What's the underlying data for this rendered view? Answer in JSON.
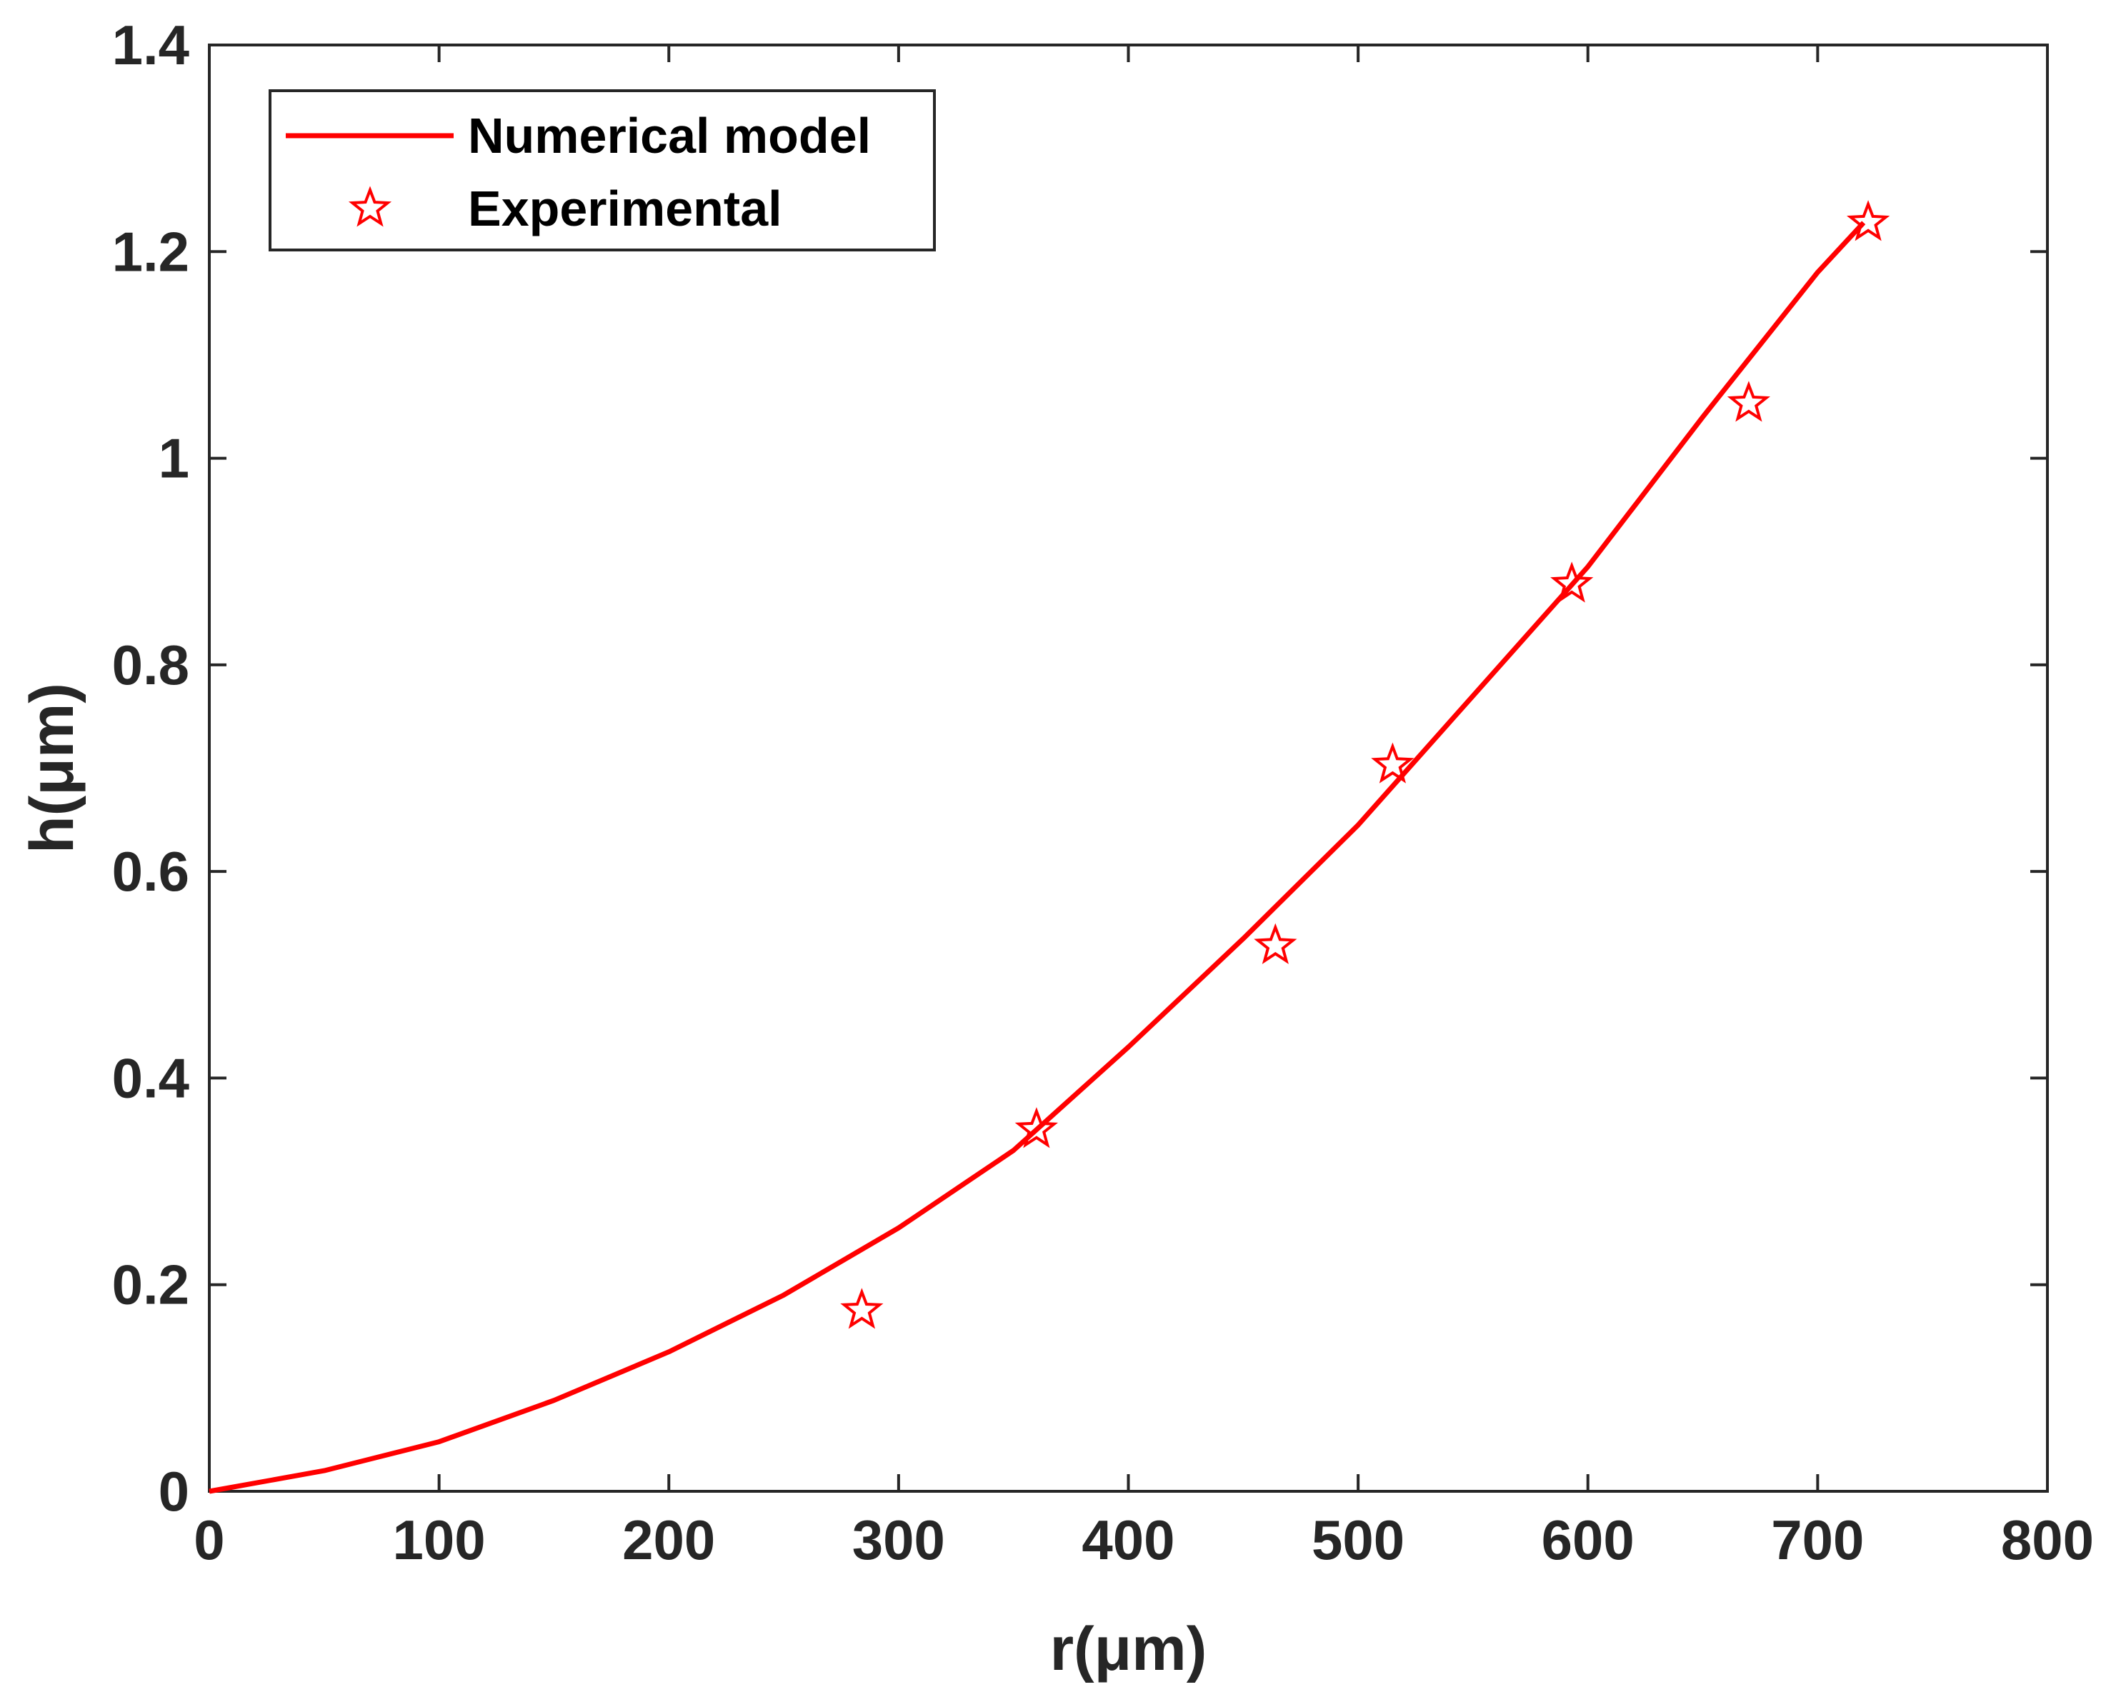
{
  "chart_data": {
    "type": "line",
    "title": "",
    "xlabel": "r(μm)",
    "ylabel": "h(μm)",
    "xlim": [
      0,
      800
    ],
    "ylim": [
      0,
      1.4
    ],
    "xticks": [
      0,
      100,
      200,
      300,
      400,
      500,
      600,
      700,
      800
    ],
    "yticks": [
      0,
      0.2,
      0.4,
      0.6,
      0.8,
      1,
      1.2,
      1.4
    ],
    "xtick_labels": [
      "0",
      "100",
      "200",
      "300",
      "400",
      "500",
      "600",
      "700",
      "800"
    ],
    "ytick_labels": [
      "0",
      "0.2",
      "0.4",
      "0.6",
      "0.8",
      "1",
      "1.2",
      "1.4"
    ],
    "grid": false,
    "legend_position": "top-left",
    "series": [
      {
        "name": "Numerical model",
        "style": "line",
        "color": "#ff0000",
        "x": [
          0,
          50,
          100,
          150,
          200,
          250,
          300,
          350,
          400,
          450,
          500,
          550,
          600,
          650,
          700,
          720
        ],
        "y": [
          0,
          0.02,
          0.048,
          0.088,
          0.135,
          0.19,
          0.255,
          0.33,
          0.43,
          0.535,
          0.645,
          0.77,
          0.895,
          1.04,
          1.18,
          1.228
        ]
      },
      {
        "name": "Experimental",
        "style": "star-marker",
        "color": "#ff0000",
        "x": [
          284,
          360,
          464,
          515,
          593,
          670,
          722
        ],
        "y": [
          0.175,
          0.35,
          0.528,
          0.703,
          0.878,
          1.053,
          1.228
        ]
      }
    ]
  }
}
